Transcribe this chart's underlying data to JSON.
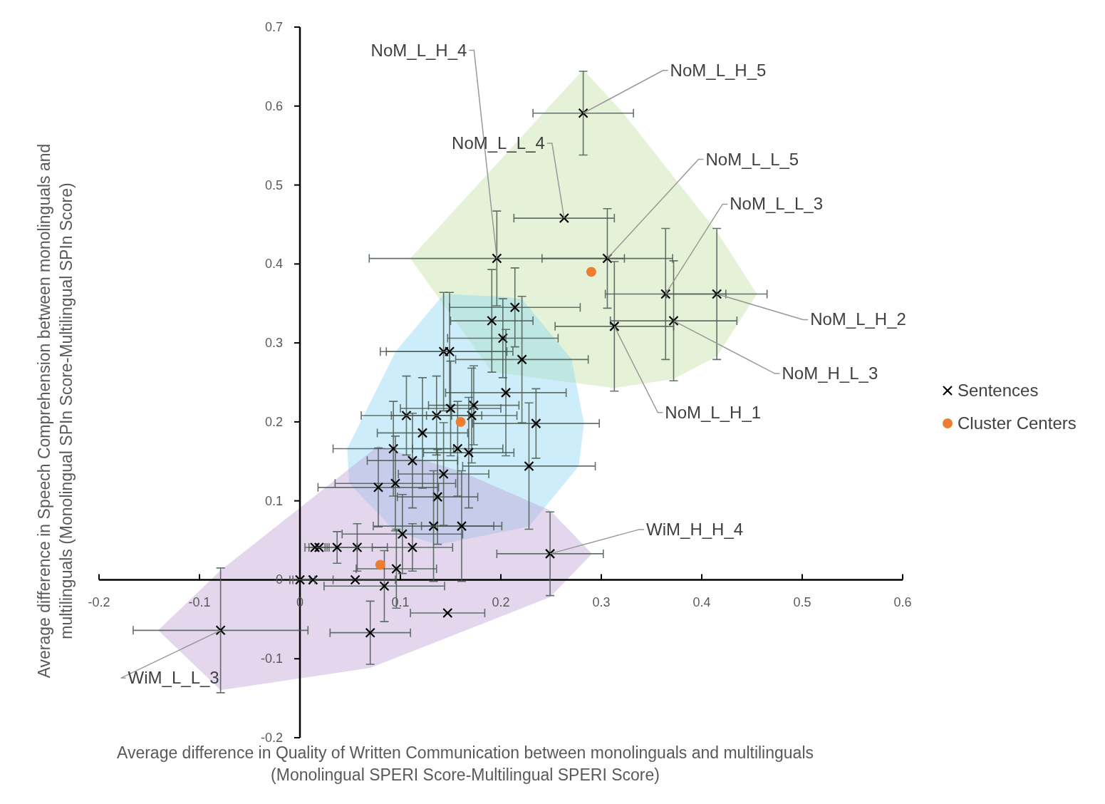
{
  "chart_data": {
    "type": "scatter",
    "xlabel": "Average difference in Quality of Written Communication between monolinguals and multilinguals\n(Monolingual SPERI Score-Multilingual SPERI Score)",
    "ylabel": "Average difference in Speech Comprehension between monolinguals and\nmultilinguals (Monolingual SPIn  Score-Multilingual SPIn Score)",
    "xlim": [
      -0.2,
      0.6
    ],
    "xticks": [
      -0.2,
      -0.1,
      0,
      0.1,
      0.2,
      0.3,
      0.4,
      0.5,
      0.6
    ],
    "ylim": [
      -0.2,
      0.7
    ],
    "yticks": [
      -0.2,
      -0.1,
      0,
      0.1,
      0.2,
      0.3,
      0.4,
      0.5,
      0.6,
      0.7
    ],
    "grid": false,
    "legend": "right",
    "series": [
      {
        "name": "Sentences",
        "color": "#000000",
        "marker": "cross",
        "x": [
          0.282,
          0.263,
          0.196,
          0.306,
          0.364,
          0.415,
          0.372,
          0.313,
          0.214,
          0.191,
          0.202,
          0.143,
          0.149,
          0.221,
          0.205,
          0.173,
          0.15,
          0.106,
          0.136,
          0.171,
          0.235,
          0.122,
          0.093,
          0.157,
          0.168,
          0.112,
          0.228,
          0.143,
          0.095,
          0.078,
          0.137,
          0.133,
          0.161,
          0.102,
          0.112,
          0.057,
          0.037,
          0.019,
          0.015,
          0.096,
          0.249,
          0,
          0.013,
          0.055,
          0.084,
          0.147,
          0.07,
          -0.079
        ],
        "values": [
          0.591,
          0.458,
          0.407,
          0.407,
          0.362,
          0.362,
          0.328,
          0.321,
          0.345,
          0.328,
          0.306,
          0.289,
          0.289,
          0.279,
          0.237,
          0.221,
          0.217,
          0.208,
          0.208,
          0.208,
          0.198,
          0.186,
          0.166,
          0.166,
          0.161,
          0.151,
          0.144,
          0.134,
          0.122,
          0.117,
          0.105,
          0.068,
          0.068,
          0.058,
          0.041,
          0.041,
          0.041,
          0.041,
          0.041,
          0.014,
          0.033,
          0,
          0,
          0,
          -0.008,
          -0.042,
          -0.067,
          -0.064
        ],
        "xerrors": [
          0.05,
          0.05,
          0.127,
          0.065,
          0.06,
          0.05,
          0.063,
          0.059,
          0.065,
          0.041,
          0.055,
          0.063,
          0.063,
          0.066,
          0.06,
          0.045,
          0.05,
          0.045,
          0.045,
          0.045,
          0.063,
          0.045,
          0.06,
          0.045,
          0.045,
          0.045,
          0.066,
          0.045,
          0.06,
          0.06,
          0.04,
          0.06,
          0.04,
          0.06,
          0.04,
          0.03,
          0.02,
          0.01,
          0.01,
          0.04,
          0.053,
          0.01,
          0.02,
          0.04,
          0.06,
          0.037,
          0.04,
          0.087
        ],
        "errors": [
          0.053,
          null,
          0.06,
          0.063,
          0.083,
          0.083,
          0.076,
          0.082,
          0.05,
          0.065,
          0.05,
          0.075,
          0.075,
          0.08,
          0.08,
          0.05,
          0.06,
          0.05,
          0.05,
          0.06,
          0.044,
          0.07,
          0.06,
          0.06,
          0.07,
          0.06,
          0.08,
          0.065,
          0.06,
          0.05,
          0.06,
          0.07,
          0.07,
          0.05,
          0.03,
          0.03,
          0.02,
          null,
          null,
          0.05,
          0.053,
          null,
          null,
          null,
          0.045,
          null,
          0.04,
          0.079
        ]
      },
      {
        "name": "Cluster Centers",
        "color": "#ed7d31",
        "marker": "circle",
        "x": [
          0.29,
          0.16,
          0.08
        ],
        "values": [
          0.39,
          0.2,
          0.019
        ]
      }
    ],
    "annotations": [
      {
        "text": "NoM_L_H_4",
        "x": 0.196,
        "y": 0.407
      },
      {
        "text": "NoM_L_H_5",
        "x": 0.282,
        "y": 0.591
      },
      {
        "text": "NoM_L_L_4",
        "x": 0.263,
        "y": 0.458
      },
      {
        "text": "NoM_L_L_5",
        "x": 0.306,
        "y": 0.407
      },
      {
        "text": "NoM_L_L_3",
        "x": 0.364,
        "y": 0.362
      },
      {
        "text": "NoM_L_H_2",
        "x": 0.415,
        "y": 0.362
      },
      {
        "text": "NoM_H_L_3",
        "x": 0.372,
        "y": 0.328
      },
      {
        "text": "NoM_L_H_1",
        "x": 0.313,
        "y": 0.321
      },
      {
        "text": "WiM_H_H_4",
        "x": 0.249,
        "y": 0.033
      },
      {
        "text": "WiM_L_L_3",
        "x": -0.079,
        "y": -0.064
      }
    ]
  }
}
